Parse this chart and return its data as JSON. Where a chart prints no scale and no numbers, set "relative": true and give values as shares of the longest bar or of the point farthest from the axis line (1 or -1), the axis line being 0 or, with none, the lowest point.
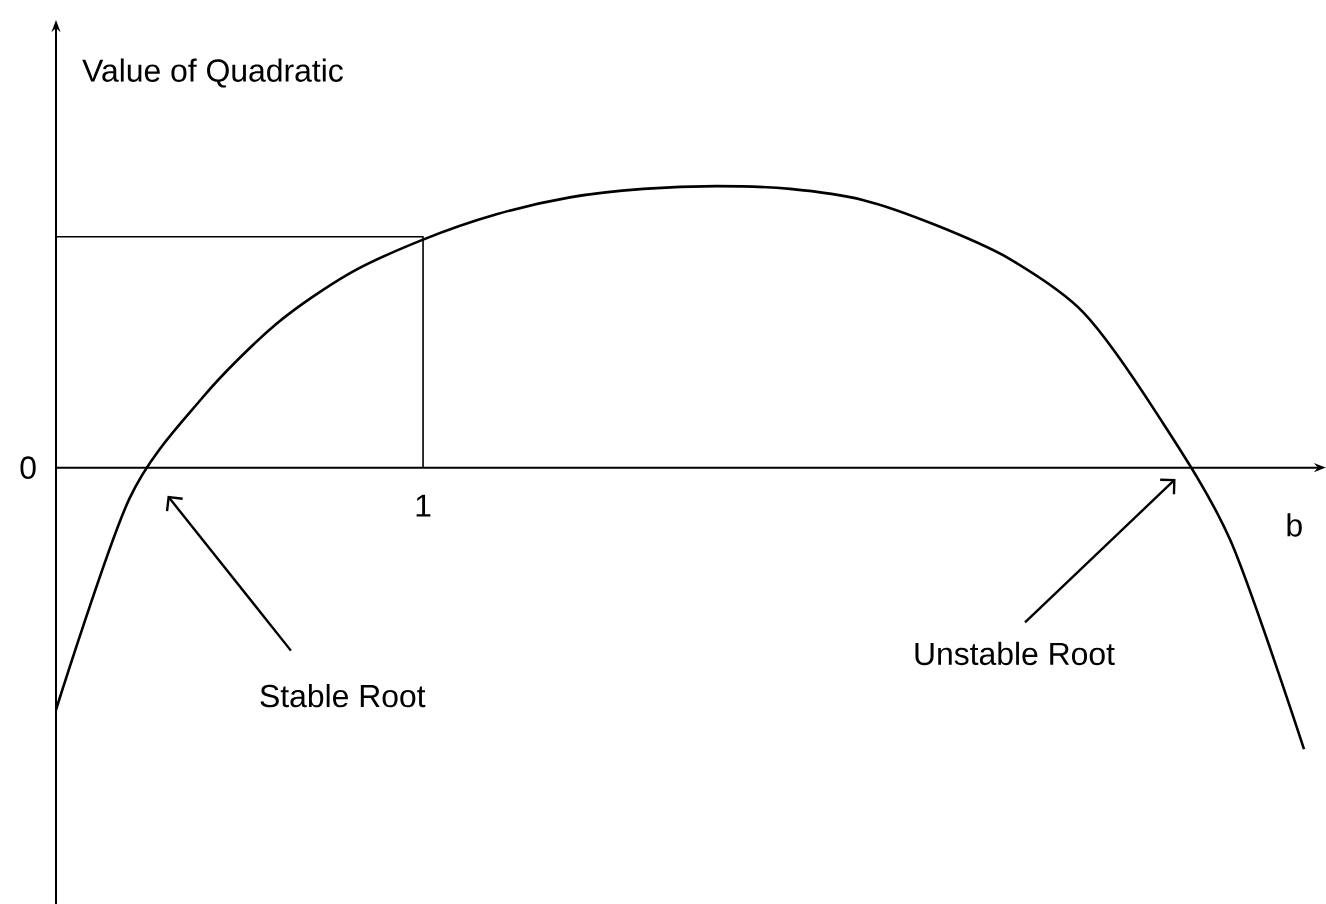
{
  "chart_data": {
    "type": "line",
    "relative": true,
    "xlabel": "b",
    "ylabel": "Value of Quadratic",
    "categories": [
      null,
      null,
      null,
      null,
      null,
      null,
      null,
      null,
      null,
      null,
      null,
      null,
      null,
      null,
      null,
      null,
      null,
      null
    ],
    "series": [
      {
        "color": "#000000",
        "values": [
          -0.86,
          -0.11,
          0.25,
          0.51,
          0.69,
          0.81,
          0.9,
          0.96,
          0.99,
          1.0,
          0.99,
          0.95,
          0.86,
          0.74,
          0.55,
          0.19,
          -0.26,
          -1.0
        ]
      },
      {
        "color": "#000000",
        "type": "step",
        "values": [
          0.82,
          0.82,
          0.82,
          0.82,
          0.82,
          0,
          null,
          null,
          null,
          null,
          null,
          null,
          null,
          null,
          null,
          null,
          null,
          null
        ]
      }
    ],
    "annotations": [
      "0",
      "1",
      "Stable Root",
      "Unstable Root"
    ]
  }
}
